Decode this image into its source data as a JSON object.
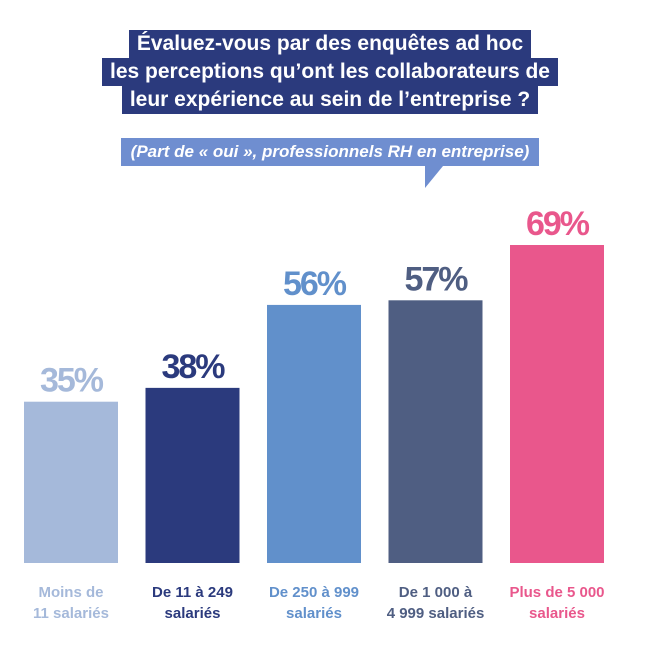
{
  "header": {
    "title_lines": [
      "Évaluez-vous par des enquêtes ad hoc",
      "les perceptions qu’ont les collaborateurs de",
      "leur expérience au sein de l’entreprise ?"
    ],
    "subtitle": "(Part de « oui », professionnels RH en entreprise)"
  },
  "colors": {
    "title_bg": "#2b3a7d",
    "subtitle_bg": "#6f8ed0",
    "bars": [
      "#a5b9da",
      "#2b3a7d",
      "#6190cb",
      "#4f5e82",
      "#e9578c"
    ]
  },
  "chart_data": {
    "type": "bar",
    "title": "Évaluez-vous par des enquêtes ad hoc les perceptions qu’ont les collaborateurs de leur expérience au sein de l’entreprise ?",
    "subtitle": "(Part de « oui », professionnels RH en entreprise)",
    "categories": [
      [
        "Moins de",
        "11 salariés"
      ],
      [
        "De 11 à 249",
        "salariés"
      ],
      [
        "De 250 à 999",
        "salariés"
      ],
      [
        "De 1 000 à",
        "4 999 salariés"
      ],
      [
        "Plus de 5 000",
        "salariés"
      ]
    ],
    "values": [
      35,
      38,
      56,
      57,
      69
    ],
    "value_labels": [
      "35%",
      "38%",
      "56%",
      "57%",
      "69%"
    ],
    "ylim": [
      0,
      100
    ],
    "grid": false,
    "legend": "none"
  }
}
